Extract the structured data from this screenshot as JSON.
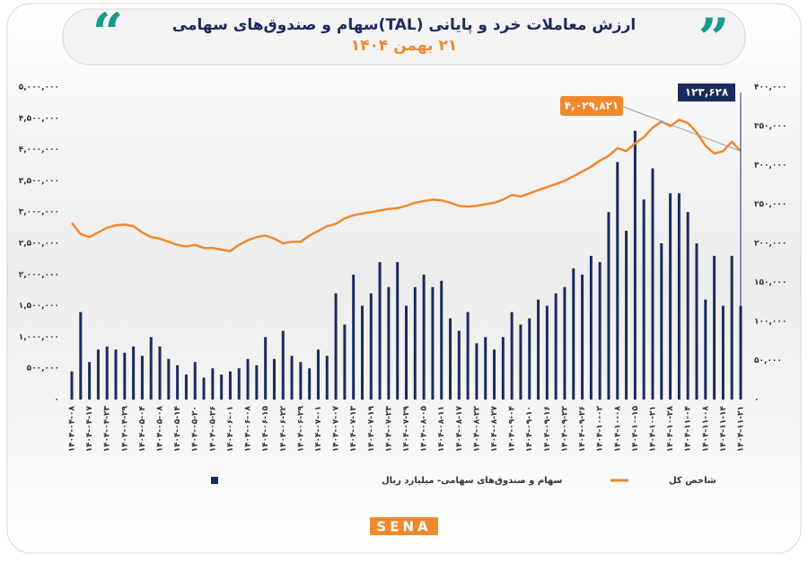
{
  "chart_data": {
    "type": "combo",
    "title": "ارزش معاملات خرد و پایانی (TAL)سهام و صندوق‌های سهامی",
    "subtitle": "۲۱ بهمن ۱۴۰۴",
    "logo": "SENA",
    "categories": [
      "۱۴۰۴-۰۴-۰۸",
      null,
      "۱۴۰۴-۰۴-۱۷",
      null,
      "۱۴۰۴-۰۴-۲۳",
      null,
      "۱۴۰۴-۰۴-۲۹",
      null,
      "۱۴۰۴-۰۵-۰۴",
      null,
      "۱۴۰۴-۰۵-۰۸",
      null,
      "۱۴۰۴-۰۵-۱۴",
      null,
      "۱۴۰۴-۰۵-۲۰",
      null,
      "۱۴۰۴-۰۵-۲۶",
      null,
      "۱۴۰۴-۰۶-۰۱",
      null,
      "۱۴۰۴-۰۶-۰۸",
      null,
      "۱۴۰۴-۰۶-۱۵",
      null,
      "۱۴۰۴-۰۶-۲۲",
      null,
      "۱۴۰۴-۰۶-۲۹",
      null,
      "۱۴۰۴-۰۷-۰۱",
      null,
      "۱۴۰۴-۰۷-۰۷",
      null,
      "۱۴۰۴-۰۷-۱۳",
      null,
      "۱۴۰۴-۰۷-۱۹",
      null,
      "۱۴۰۴-۰۷-۲۳",
      null,
      "۱۴۰۴-۰۷-۲۹",
      null,
      "۱۴۰۴-۰۸-۰۵",
      null,
      "۱۴۰۴-۰۸-۱۱",
      null,
      "۱۴۰۴-۰۸-۱۷",
      null,
      "۱۴۰۴-۰۸-۲۲",
      null,
      "۱۴۰۴-۰۸-۲۷",
      null,
      "۱۴۰۴-۰۹-۰۴",
      null,
      "۱۴۰۴-۰۹-۱۰",
      null,
      "۱۴۰۴-۰۹-۱۶",
      null,
      "۱۴۰۴-۰۹-۲۲",
      null,
      "۱۴۰۴-۰۹-۲۶",
      null,
      "۱۴۰۴-۱۰-۰۲",
      null,
      "۱۴۰۴-۱۰-۰۸",
      null,
      "۱۴۰۴-۱۰-۱۵",
      null,
      "۱۴۰۴-۱۰-۲۱",
      null,
      "۱۴۰۴-۱۰-۲۸",
      null,
      "۱۴۰۴-۱۱-۰۴",
      null,
      "۱۴۰۴-۱۱-۰۸",
      null,
      "۱۴۰۴-۱۱-۱۴",
      null,
      "۱۴۰۴-۱۱-۲۱"
    ],
    "series": [
      {
        "name": "سهام و صندوق‌های سهامی- میلیارد ریال",
        "type": "bar",
        "axis": "y",
        "color": "#1c2a5e",
        "values": [
          450000,
          1400000,
          600000,
          800000,
          850000,
          800000,
          750000,
          850000,
          700000,
          1000000,
          850000,
          650000,
          550000,
          400000,
          600000,
          350000,
          500000,
          400000,
          450000,
          500000,
          650000,
          550000,
          1000000,
          650000,
          1100000,
          700000,
          600000,
          500000,
          800000,
          700000,
          1700000,
          1200000,
          2000000,
          1500000,
          1700000,
          2200000,
          1800000,
          2200000,
          1500000,
          1800000,
          2000000,
          1800000,
          1900000,
          1300000,
          1100000,
          1400000,
          900000,
          1000000,
          800000,
          1000000,
          1400000,
          1200000,
          1300000,
          1600000,
          1500000,
          1700000,
          1800000,
          2100000,
          2000000,
          2300000,
          2200000,
          3000000,
          3800000,
          2700000,
          4300000,
          3200000,
          3700000,
          2500000,
          3300000,
          3300000,
          3000000,
          2500000,
          1600000,
          2300000,
          1500000,
          2300000,
          1500000
        ]
      },
      {
        "name": "شاخص کل",
        "type": "line",
        "axis": "y2",
        "color": "#f0882e",
        "values": [
          226000,
          212000,
          208000,
          214000,
          220000,
          223000,
          224000,
          222000,
          214000,
          208000,
          206000,
          202000,
          198000,
          196000,
          198000,
          194000,
          194000,
          192000,
          190000,
          198000,
          204000,
          208000,
          210000,
          206000,
          200000,
          202000,
          202000,
          210000,
          216000,
          222000,
          225000,
          232000,
          236000,
          238000,
          240000,
          242000,
          244000,
          245000,
          248000,
          252000,
          254000,
          256000,
          255000,
          252000,
          248000,
          247000,
          248000,
          250000,
          252000,
          256000,
          262000,
          260000,
          264000,
          268000,
          272000,
          276000,
          280000,
          286000,
          292000,
          298000,
          306000,
          312000,
          322000,
          318000,
          328000,
          336000,
          348000,
          356000,
          350000,
          358000,
          354000,
          342000,
          325000,
          315000,
          318000,
          330000,
          318000
        ]
      }
    ],
    "annotations": [
      {
        "text": "۱۲۳,۶۲۸",
        "color": "#1c2a5e"
      },
      {
        "text": "۴,۰۲۹,۸۲۱",
        "color": "#f0882e"
      }
    ],
    "ylim": [
      0,
      5000000
    ],
    "yticks": [
      {
        "value": 0,
        "label": "۰"
      },
      {
        "value": 500000,
        "label": "۵۰۰,۰۰۰"
      },
      {
        "value": 1000000,
        "label": "۱,۰۰۰,۰۰۰"
      },
      {
        "value": 1500000,
        "label": "۱,۵۰۰,۰۰۰"
      },
      {
        "value": 2000000,
        "label": "۲,۰۰۰,۰۰۰"
      },
      {
        "value": 2500000,
        "label": "۲,۵۰۰,۰۰۰"
      },
      {
        "value": 3000000,
        "label": "۳,۰۰۰,۰۰۰"
      },
      {
        "value": 3500000,
        "label": "۳,۵۰۰,۰۰۰"
      },
      {
        "value": 4000000,
        "label": "۴,۰۰۰,۰۰۰"
      },
      {
        "value": 4500000,
        "label": "۴,۵۰۰,۰۰۰"
      },
      {
        "value": 5000000,
        "label": "۵,۰۰۰,۰۰۰"
      }
    ],
    "y2lim": [
      0,
      400000
    ],
    "y2ticks": [
      {
        "value": 0,
        "label": "۰"
      },
      {
        "value": 50000,
        "label": "۵۰,۰۰۰"
      },
      {
        "value": 100000,
        "label": "۱۰۰,۰۰۰"
      },
      {
        "value": 150000,
        "label": "۱۵۰,۰۰۰"
      },
      {
        "value": 200000,
        "label": "۲۰۰,۰۰۰"
      },
      {
        "value": 250000,
        "label": "۲۵۰,۰۰۰"
      },
      {
        "value": 300000,
        "label": "۳۰۰,۰۰۰"
      },
      {
        "value": 350000,
        "label": "۳۵۰,۰۰۰"
      },
      {
        "value": 400000,
        "label": "۴۰۰,۰۰۰"
      }
    ],
    "grid": false
  }
}
